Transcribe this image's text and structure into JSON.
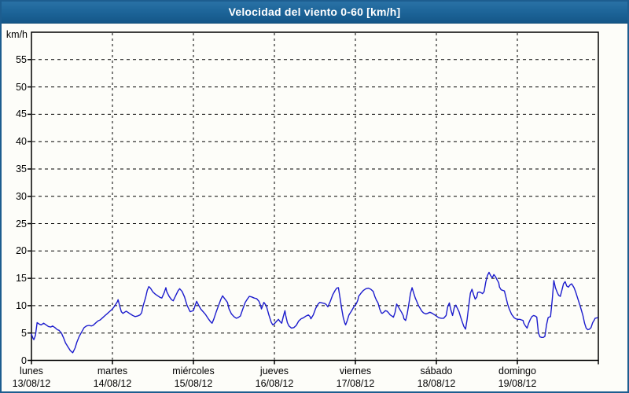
{
  "window": {
    "title": "Velocidad del viento 0-60 [km/h]"
  },
  "colors": {
    "frame_border": "#1d5d8f",
    "titlebar": "#1b6296",
    "title_text": "#ffffff",
    "plot_background": "#fdfdf9",
    "grid": "#000000",
    "axis": "#000000",
    "line": "#1c1ccd",
    "label_text": "#000000"
  },
  "chart_data": {
    "type": "line",
    "title": "Velocidad del viento 0-60 [km/h]",
    "ylabel": "km/h",
    "xlabel": "",
    "ylim": [
      0,
      60
    ],
    "y_ticks": [
      0,
      5,
      10,
      15,
      20,
      25,
      30,
      35,
      40,
      45,
      50,
      55
    ],
    "grid": true,
    "legend_position": "none",
    "x_axis_days": [
      {
        "name": "lunes",
        "date": "13/08/12"
      },
      {
        "name": "martes",
        "date": "14/08/12"
      },
      {
        "name": "miércoles",
        "date": "15/08/12"
      },
      {
        "name": "jueves",
        "date": "16/08/12"
      },
      {
        "name": "viernes",
        "date": "17/08/12"
      },
      {
        "name": "sábado",
        "date": "18/08/12"
      },
      {
        "name": "domingo",
        "date": "19/08/12"
      }
    ],
    "series": [
      {
        "name": "Velocidad del viento",
        "units": "km/h",
        "x_units": "days_from_start",
        "color": "#1c1ccd",
        "points": [
          [
            0.0,
            4.8
          ],
          [
            0.02,
            4.0
          ],
          [
            0.03,
            3.8
          ],
          [
            0.05,
            4.6
          ],
          [
            0.07,
            6.9
          ],
          [
            0.1,
            6.6
          ],
          [
            0.12,
            6.5
          ],
          [
            0.15,
            6.8
          ],
          [
            0.17,
            6.6
          ],
          [
            0.21,
            6.2
          ],
          [
            0.24,
            6.1
          ],
          [
            0.26,
            6.3
          ],
          [
            0.29,
            6.0
          ],
          [
            0.32,
            5.6
          ],
          [
            0.34,
            5.5
          ],
          [
            0.37,
            5.0
          ],
          [
            0.4,
            4.0
          ],
          [
            0.42,
            3.2
          ],
          [
            0.45,
            2.5
          ],
          [
            0.48,
            1.8
          ],
          [
            0.51,
            1.4
          ],
          [
            0.54,
            2.3
          ],
          [
            0.56,
            3.3
          ],
          [
            0.59,
            4.4
          ],
          [
            0.62,
            5.2
          ],
          [
            0.65,
            6.0
          ],
          [
            0.68,
            6.3
          ],
          [
            0.71,
            6.4
          ],
          [
            0.74,
            6.3
          ],
          [
            0.76,
            6.4
          ],
          [
            0.79,
            6.8
          ],
          [
            0.82,
            7.2
          ],
          [
            0.85,
            7.4
          ],
          [
            0.88,
            7.8
          ],
          [
            0.91,
            8.2
          ],
          [
            0.94,
            8.6
          ],
          [
            0.97,
            9.0
          ],
          [
            1.0,
            9.4
          ],
          [
            1.03,
            10.0
          ],
          [
            1.06,
            10.7
          ],
          [
            1.07,
            11.1
          ],
          [
            1.09,
            9.9
          ],
          [
            1.11,
            8.9
          ],
          [
            1.13,
            8.6
          ],
          [
            1.15,
            8.8
          ],
          [
            1.17,
            9.0
          ],
          [
            1.19,
            8.8
          ],
          [
            1.22,
            8.5
          ],
          [
            1.25,
            8.2
          ],
          [
            1.28,
            8.0
          ],
          [
            1.31,
            8.1
          ],
          [
            1.34,
            8.3
          ],
          [
            1.36,
            8.7
          ],
          [
            1.38,
            10.0
          ],
          [
            1.41,
            11.5
          ],
          [
            1.43,
            12.8
          ],
          [
            1.45,
            13.5
          ],
          [
            1.47,
            13.2
          ],
          [
            1.5,
            12.5
          ],
          [
            1.53,
            12.1
          ],
          [
            1.56,
            11.8
          ],
          [
            1.59,
            11.5
          ],
          [
            1.61,
            11.4
          ],
          [
            1.64,
            12.4
          ],
          [
            1.66,
            13.3
          ],
          [
            1.67,
            12.6
          ],
          [
            1.7,
            11.7
          ],
          [
            1.73,
            11.1
          ],
          [
            1.75,
            10.9
          ],
          [
            1.78,
            11.8
          ],
          [
            1.81,
            12.7
          ],
          [
            1.83,
            13.1
          ],
          [
            1.86,
            12.6
          ],
          [
            1.89,
            11.6
          ],
          [
            1.92,
            10.1
          ],
          [
            1.95,
            9.2
          ],
          [
            1.96,
            8.9
          ],
          [
            1.98,
            9.0
          ],
          [
            2.0,
            9.1
          ],
          [
            2.02,
            10.0
          ],
          [
            2.04,
            10.8
          ],
          [
            2.06,
            10.2
          ],
          [
            2.09,
            9.4
          ],
          [
            2.12,
            8.9
          ],
          [
            2.15,
            8.4
          ],
          [
            2.18,
            7.7
          ],
          [
            2.21,
            7.1
          ],
          [
            2.23,
            6.8
          ],
          [
            2.25,
            7.5
          ],
          [
            2.28,
            8.8
          ],
          [
            2.31,
            10.0
          ],
          [
            2.34,
            11.2
          ],
          [
            2.36,
            11.8
          ],
          [
            2.39,
            11.2
          ],
          [
            2.42,
            10.6
          ],
          [
            2.44,
            9.4
          ],
          [
            2.47,
            8.5
          ],
          [
            2.5,
            8.0
          ],
          [
            2.53,
            7.7
          ],
          [
            2.55,
            7.8
          ],
          [
            2.58,
            8.1
          ],
          [
            2.61,
            9.4
          ],
          [
            2.64,
            10.6
          ],
          [
            2.67,
            11.3
          ],
          [
            2.69,
            11.7
          ],
          [
            2.72,
            11.6
          ],
          [
            2.75,
            11.4
          ],
          [
            2.78,
            11.3
          ],
          [
            2.81,
            10.8
          ],
          [
            2.83,
            10.0
          ],
          [
            2.84,
            9.4
          ],
          [
            2.87,
            10.6
          ],
          [
            2.9,
            10.0
          ],
          [
            2.93,
            8.4
          ],
          [
            2.96,
            7.0
          ],
          [
            2.98,
            6.5
          ],
          [
            3.0,
            6.7
          ],
          [
            3.03,
            7.2
          ],
          [
            3.05,
            7.5
          ],
          [
            3.07,
            7.1
          ],
          [
            3.09,
            6.8
          ],
          [
            3.11,
            8.0
          ],
          [
            3.13,
            9.1
          ],
          [
            3.14,
            8.2
          ],
          [
            3.16,
            6.9
          ],
          [
            3.18,
            6.3
          ],
          [
            3.21,
            5.9
          ],
          [
            3.24,
            6.0
          ],
          [
            3.27,
            6.4
          ],
          [
            3.3,
            7.2
          ],
          [
            3.33,
            7.6
          ],
          [
            3.36,
            7.8
          ],
          [
            3.39,
            8.1
          ],
          [
            3.42,
            8.3
          ],
          [
            3.44,
            8.0
          ],
          [
            3.45,
            7.6
          ],
          [
            3.48,
            8.3
          ],
          [
            3.51,
            9.5
          ],
          [
            3.54,
            10.3
          ],
          [
            3.56,
            10.6
          ],
          [
            3.59,
            10.5
          ],
          [
            3.62,
            10.4
          ],
          [
            3.64,
            10.2
          ],
          [
            3.66,
            9.8
          ],
          [
            3.69,
            10.8
          ],
          [
            3.72,
            12.0
          ],
          [
            3.75,
            12.8
          ],
          [
            3.77,
            13.2
          ],
          [
            3.79,
            13.3
          ],
          [
            3.81,
            11.5
          ],
          [
            3.83,
            9.5
          ],
          [
            3.85,
            7.8
          ],
          [
            3.87,
            6.8
          ],
          [
            3.88,
            6.5
          ],
          [
            3.9,
            7.3
          ],
          [
            3.92,
            8.3
          ],
          [
            3.95,
            9.0
          ],
          [
            3.97,
            9.5
          ],
          [
            3.99,
            10.0
          ],
          [
            4.01,
            10.3
          ],
          [
            4.03,
            11.0
          ],
          [
            4.04,
            11.7
          ],
          [
            4.07,
            12.3
          ],
          [
            4.1,
            12.8
          ],
          [
            4.13,
            13.1
          ],
          [
            4.16,
            13.2
          ],
          [
            4.19,
            13.0
          ],
          [
            4.22,
            12.6
          ],
          [
            4.24,
            11.7
          ],
          [
            4.26,
            11.0
          ],
          [
            4.28,
            10.5
          ],
          [
            4.3,
            9.4
          ],
          [
            4.32,
            8.7
          ],
          [
            4.33,
            8.6
          ],
          [
            4.35,
            8.8
          ],
          [
            4.37,
            9.1
          ],
          [
            4.39,
            9.0
          ],
          [
            4.41,
            8.7
          ],
          [
            4.43,
            8.3
          ],
          [
            4.45,
            8.1
          ],
          [
            4.47,
            7.9
          ],
          [
            4.49,
            8.8
          ],
          [
            4.51,
            10.3
          ],
          [
            4.53,
            9.8
          ],
          [
            4.55,
            9.3
          ],
          [
            4.57,
            8.8
          ],
          [
            4.59,
            8.2
          ],
          [
            4.6,
            7.6
          ],
          [
            4.62,
            7.3
          ],
          [
            4.64,
            8.5
          ],
          [
            4.66,
            10.3
          ],
          [
            4.68,
            12.2
          ],
          [
            4.7,
            13.3
          ],
          [
            4.72,
            12.3
          ],
          [
            4.74,
            11.4
          ],
          [
            4.76,
            10.7
          ],
          [
            4.78,
            10.0
          ],
          [
            4.8,
            9.5
          ],
          [
            4.82,
            9.0
          ],
          [
            4.84,
            8.7
          ],
          [
            4.87,
            8.5
          ],
          [
            4.89,
            8.6
          ],
          [
            4.92,
            8.8
          ],
          [
            4.95,
            8.6
          ],
          [
            4.98,
            8.3
          ],
          [
            5.01,
            8.0
          ],
          [
            5.03,
            7.8
          ],
          [
            5.06,
            7.7
          ],
          [
            5.09,
            7.7
          ],
          [
            5.12,
            8.2
          ],
          [
            5.14,
            9.8
          ],
          [
            5.16,
            10.5
          ],
          [
            5.18,
            9.2
          ],
          [
            5.2,
            8.2
          ],
          [
            5.22,
            9.6
          ],
          [
            5.24,
            10.1
          ],
          [
            5.26,
            9.5
          ],
          [
            5.28,
            8.9
          ],
          [
            5.3,
            7.9
          ],
          [
            5.32,
            7.0
          ],
          [
            5.34,
            6.2
          ],
          [
            5.36,
            5.7
          ],
          [
            5.38,
            7.5
          ],
          [
            5.4,
            10.0
          ],
          [
            5.42,
            12.3
          ],
          [
            5.44,
            13.0
          ],
          [
            5.46,
            12.0
          ],
          [
            5.48,
            11.2
          ],
          [
            5.5,
            11.6
          ],
          [
            5.51,
            12.4
          ],
          [
            5.53,
            12.5
          ],
          [
            5.55,
            12.4
          ],
          [
            5.57,
            12.2
          ],
          [
            5.59,
            12.6
          ],
          [
            5.61,
            14.3
          ],
          [
            5.63,
            15.5
          ],
          [
            5.65,
            16.1
          ],
          [
            5.67,
            15.5
          ],
          [
            5.69,
            15.1
          ],
          [
            5.71,
            15.7
          ],
          [
            5.73,
            15.3
          ],
          [
            5.75,
            14.7
          ],
          [
            5.77,
            14.2
          ],
          [
            5.78,
            13.4
          ],
          [
            5.8,
            12.9
          ],
          [
            5.82,
            12.8
          ],
          [
            5.84,
            12.7
          ],
          [
            5.86,
            11.5
          ],
          [
            5.88,
            10.3
          ],
          [
            5.9,
            9.4
          ],
          [
            5.93,
            8.4
          ],
          [
            5.96,
            7.8
          ],
          [
            5.98,
            7.6
          ],
          [
            6.01,
            7.5
          ],
          [
            6.03,
            7.5
          ],
          [
            6.05,
            7.4
          ],
          [
            6.07,
            7.3
          ],
          [
            6.08,
            6.8
          ],
          [
            6.1,
            6.3
          ],
          [
            6.12,
            5.9
          ],
          [
            6.14,
            6.8
          ],
          [
            6.16,
            7.5
          ],
          [
            6.18,
            8.0
          ],
          [
            6.2,
            8.2
          ],
          [
            6.22,
            8.1
          ],
          [
            6.24,
            7.9
          ],
          [
            6.26,
            5.0
          ],
          [
            6.28,
            4.3
          ],
          [
            6.3,
            4.2
          ],
          [
            6.32,
            4.2
          ],
          [
            6.34,
            4.4
          ],
          [
            6.36,
            6.5
          ],
          [
            6.38,
            7.8
          ],
          [
            6.39,
            7.9
          ],
          [
            6.41,
            8.0
          ],
          [
            6.43,
            11.0
          ],
          [
            6.45,
            14.6
          ],
          [
            6.47,
            13.3
          ],
          [
            6.49,
            12.5
          ],
          [
            6.51,
            11.9
          ],
          [
            6.53,
            11.7
          ],
          [
            6.55,
            12.8
          ],
          [
            6.57,
            14.0
          ],
          [
            6.59,
            14.4
          ],
          [
            6.61,
            13.6
          ],
          [
            6.63,
            13.4
          ],
          [
            6.65,
            13.8
          ],
          [
            6.67,
            14.0
          ],
          [
            6.68,
            13.8
          ],
          [
            6.7,
            13.3
          ],
          [
            6.72,
            12.5
          ],
          [
            6.74,
            11.6
          ],
          [
            6.77,
            10.2
          ],
          [
            6.79,
            9.2
          ],
          [
            6.81,
            8.2
          ],
          [
            6.83,
            6.8
          ],
          [
            6.85,
            5.9
          ],
          [
            6.87,
            5.6
          ],
          [
            6.89,
            5.7
          ],
          [
            6.91,
            6.0
          ],
          [
            6.93,
            6.9
          ],
          [
            6.95,
            7.4
          ],
          [
            6.96,
            7.7
          ],
          [
            6.99,
            7.8
          ]
        ]
      }
    ]
  }
}
